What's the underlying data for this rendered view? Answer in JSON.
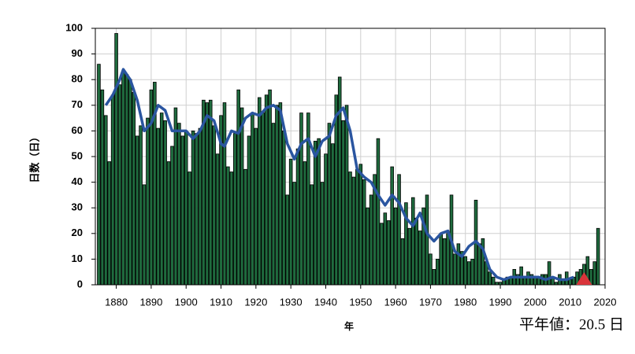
{
  "chart_data": {
    "type": "bar",
    "ylabel": "日数（日）",
    "xlabel": "年",
    "annotation": "平年値：20.5 日",
    "color": "#1f6b3e",
    "x": [
      1875,
      1876,
      1877,
      1878,
      1879,
      1880,
      1881,
      1882,
      1883,
      1884,
      1885,
      1886,
      1887,
      1888,
      1889,
      1890,
      1891,
      1892,
      1893,
      1894,
      1895,
      1896,
      1897,
      1898,
      1899,
      1900,
      1901,
      1902,
      1903,
      1904,
      1905,
      1906,
      1907,
      1908,
      1909,
      1910,
      1911,
      1912,
      1913,
      1914,
      1915,
      1916,
      1917,
      1918,
      1919,
      1920,
      1921,
      1922,
      1923,
      1924,
      1925,
      1926,
      1927,
      1928,
      1929,
      1930,
      1931,
      1932,
      1933,
      1934,
      1935,
      1936,
      1937,
      1938,
      1939,
      1940,
      1941,
      1942,
      1943,
      1944,
      1945,
      1946,
      1947,
      1948,
      1949,
      1950,
      1951,
      1952,
      1953,
      1954,
      1955,
      1956,
      1957,
      1958,
      1959,
      1960,
      1961,
      1962,
      1963,
      1964,
      1965,
      1966,
      1967,
      1968,
      1969,
      1970,
      1971,
      1972,
      1973,
      1974,
      1975,
      1976,
      1977,
      1978,
      1979,
      1980,
      1981,
      1982,
      1983,
      1984,
      1985,
      1986,
      1987,
      1988,
      1989,
      1990,
      1991,
      1992,
      1993,
      1994,
      1995,
      1996,
      1997,
      1998,
      1999,
      2000,
      2001,
      2002,
      2003,
      2004,
      2005,
      2006,
      2007,
      2008,
      2009,
      2010,
      2011,
      2012,
      2013,
      2014,
      2015,
      2016,
      2017,
      2018
    ],
    "values": [
      86,
      76,
      66,
      48,
      74,
      98,
      78,
      83,
      82,
      80,
      75,
      58,
      62,
      39,
      65,
      76,
      79,
      61,
      67,
      64,
      48,
      54,
      69,
      63,
      58,
      60,
      44,
      60,
      59,
      61,
      72,
      71,
      72,
      62,
      51,
      66,
      71,
      46,
      44,
      59,
      76,
      69,
      45,
      58,
      67,
      61,
      73,
      67,
      74,
      76,
      63,
      70,
      71,
      60,
      35,
      49,
      40,
      53,
      67,
      48,
      67,
      39,
      56,
      57,
      40,
      51,
      63,
      55,
      74,
      81,
      64,
      70,
      44,
      42,
      45,
      47,
      41,
      30,
      35,
      43,
      57,
      24,
      28,
      25,
      46,
      30,
      43,
      18,
      32,
      22,
      34,
      26,
      21,
      30,
      35,
      12,
      6,
      10,
      20,
      18,
      20,
      35,
      12,
      16,
      13,
      11,
      9,
      10,
      33,
      16,
      18,
      9,
      5,
      3,
      1,
      1,
      2,
      3,
      3,
      6,
      4,
      7,
      3,
      5,
      4,
      3,
      3,
      4,
      4,
      9,
      3,
      1,
      4,
      2,
      5,
      2,
      3,
      5,
      6,
      8,
      11,
      6,
      9,
      22
    ],
    "line": {
      "color": "#2a55a0",
      "x": [
        1877,
        1879,
        1881,
        1882,
        1884,
        1886,
        1888,
        1890,
        1892,
        1894,
        1896,
        1898,
        1900,
        1902,
        1904,
        1906,
        1908,
        1910,
        1911,
        1913,
        1915,
        1917,
        1919,
        1921,
        1923,
        1925,
        1927,
        1929,
        1931,
        1933,
        1935,
        1937,
        1939,
        1941,
        1943,
        1945,
        1947,
        1949,
        1951,
        1953,
        1955,
        1957,
        1959,
        1961,
        1963,
        1965,
        1967,
        1969,
        1971,
        1973,
        1975,
        1977,
        1979,
        1981,
        1983,
        1985,
        1987,
        1989,
        1991,
        1993,
        1995,
        1997,
        1999,
        2001,
        2003,
        2005,
        2007,
        2009,
        2011
      ],
      "values": [
        70,
        74,
        80,
        84,
        80,
        72,
        60,
        63,
        70,
        68,
        60,
        60,
        60,
        57,
        60,
        66,
        64,
        55,
        54,
        60,
        59,
        65,
        67,
        66,
        69,
        70,
        68,
        55,
        49,
        55,
        57,
        50,
        56,
        58,
        66,
        69,
        60,
        45,
        42,
        40,
        35,
        31,
        35,
        32,
        26,
        23,
        28,
        20,
        17,
        20,
        21,
        13,
        11,
        15,
        17,
        14,
        6,
        3,
        2,
        3,
        3,
        3,
        3,
        3,
        2,
        3,
        2,
        2,
        3
      ]
    },
    "marker": {
      "x": 2014,
      "value": 0,
      "color": "#d9343a"
    },
    "xlim": [
      1874,
      2020
    ],
    "ylim": [
      0,
      100
    ],
    "xticks": [
      1880,
      1890,
      1900,
      1910,
      1920,
      1930,
      1940,
      1950,
      1960,
      1970,
      1980,
      1990,
      2000,
      2010,
      2020
    ],
    "yticks": [
      0,
      10,
      20,
      30,
      40,
      50,
      60,
      70,
      80,
      90,
      100
    ],
    "grid": true
  }
}
